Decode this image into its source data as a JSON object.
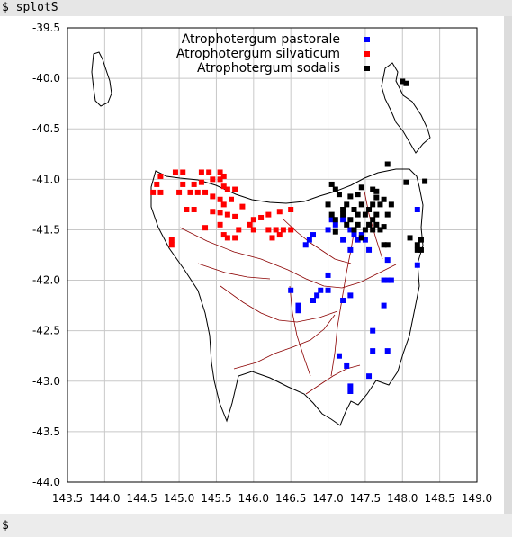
{
  "terminal": {
    "command": "$ splotS",
    "prompt": "$"
  },
  "chart_data": {
    "type": "scatter",
    "xlim": [
      143.5,
      149.0
    ],
    "ylim": [
      -44.0,
      -39.5
    ],
    "xticks": [
      "143.5",
      "144.0",
      "144.5",
      "145.0",
      "145.5",
      "146.0",
      "146.5",
      "147.0",
      "147.5",
      "148.0",
      "148.5",
      "149.0"
    ],
    "yticks": [
      "-39.5",
      "-40.0",
      "-40.5",
      "-41.0",
      "-41.5",
      "-42.0",
      "-42.5",
      "-43.0",
      "-43.5",
      "-44.0"
    ],
    "grid": true,
    "legend_position": "top-right",
    "series": [
      {
        "name": "Atrophotergum pastorale",
        "color": "#0000ff",
        "points": [
          [
            148.2,
            -41.3
          ],
          [
            147.05,
            -41.4
          ],
          [
            147.2,
            -41.4
          ],
          [
            147.1,
            -41.45
          ],
          [
            147.3,
            -41.5
          ],
          [
            147.45,
            -41.55
          ],
          [
            147.5,
            -41.6
          ],
          [
            147.4,
            -41.6
          ],
          [
            147.2,
            -41.6
          ],
          [
            147.35,
            -41.55
          ],
          [
            147.0,
            -41.5
          ],
          [
            146.8,
            -41.55
          ],
          [
            146.75,
            -41.6
          ],
          [
            146.7,
            -41.65
          ],
          [
            147.3,
            -41.7
          ],
          [
            147.55,
            -41.7
          ],
          [
            147.8,
            -41.8
          ],
          [
            148.2,
            -41.85
          ],
          [
            147.0,
            -41.95
          ],
          [
            147.75,
            -42.0
          ],
          [
            147.8,
            -42.0
          ],
          [
            147.85,
            -42.0
          ],
          [
            146.5,
            -42.1
          ],
          [
            147.0,
            -42.1
          ],
          [
            146.9,
            -42.1
          ],
          [
            146.85,
            -42.15
          ],
          [
            147.3,
            -42.15
          ],
          [
            146.8,
            -42.2
          ],
          [
            147.2,
            -42.2
          ],
          [
            146.6,
            -42.3
          ],
          [
            146.6,
            -42.25
          ],
          [
            147.75,
            -42.25
          ],
          [
            147.6,
            -42.5
          ],
          [
            147.15,
            -42.75
          ],
          [
            147.6,
            -42.7
          ],
          [
            147.8,
            -42.7
          ],
          [
            147.25,
            -42.85
          ],
          [
            147.55,
            -42.95
          ],
          [
            147.3,
            -43.05
          ],
          [
            147.3,
            -43.1
          ]
        ]
      },
      {
        "name": "Atrophotergum silvaticum",
        "color": "#ff0000",
        "points": [
          [
            144.75,
            -40.97
          ],
          [
            144.95,
            -40.93
          ],
          [
            145.05,
            -40.93
          ],
          [
            145.3,
            -40.93
          ],
          [
            145.4,
            -40.93
          ],
          [
            145.55,
            -40.93
          ],
          [
            145.6,
            -40.97
          ],
          [
            145.45,
            -41.0
          ],
          [
            145.55,
            -41.0
          ],
          [
            145.3,
            -41.03
          ],
          [
            145.2,
            -41.05
          ],
          [
            145.05,
            -41.05
          ],
          [
            144.7,
            -41.05
          ],
          [
            145.6,
            -41.07
          ],
          [
            145.65,
            -41.1
          ],
          [
            145.75,
            -41.1
          ],
          [
            144.65,
            -41.13
          ],
          [
            144.75,
            -41.13
          ],
          [
            145.0,
            -41.13
          ],
          [
            145.15,
            -41.13
          ],
          [
            145.25,
            -41.13
          ],
          [
            145.35,
            -41.13
          ],
          [
            145.45,
            -41.17
          ],
          [
            145.55,
            -41.2
          ],
          [
            145.7,
            -41.2
          ],
          [
            145.6,
            -41.25
          ],
          [
            145.85,
            -41.27
          ],
          [
            145.1,
            -41.3
          ],
          [
            145.2,
            -41.3
          ],
          [
            145.45,
            -41.32
          ],
          [
            145.55,
            -41.33
          ],
          [
            145.65,
            -41.35
          ],
          [
            145.75,
            -41.37
          ],
          [
            146.0,
            -41.4
          ],
          [
            146.1,
            -41.38
          ],
          [
            146.2,
            -41.35
          ],
          [
            146.35,
            -41.32
          ],
          [
            146.5,
            -41.3
          ],
          [
            145.95,
            -41.45
          ],
          [
            145.55,
            -41.45
          ],
          [
            145.35,
            -41.48
          ],
          [
            145.8,
            -41.5
          ],
          [
            146.0,
            -41.5
          ],
          [
            146.2,
            -41.5
          ],
          [
            146.3,
            -41.5
          ],
          [
            146.4,
            -41.5
          ],
          [
            146.5,
            -41.5
          ],
          [
            145.6,
            -41.55
          ],
          [
            145.65,
            -41.58
          ],
          [
            145.75,
            -41.58
          ],
          [
            146.25,
            -41.58
          ],
          [
            146.35,
            -41.55
          ],
          [
            144.9,
            -41.6
          ],
          [
            144.9,
            -41.65
          ]
        ]
      },
      {
        "name": "Atrophotergum sodalis",
        "color": "#000000",
        "points": [
          [
            148.0,
            -40.03
          ],
          [
            148.05,
            -40.05
          ],
          [
            147.8,
            -40.85
          ],
          [
            148.3,
            -41.02
          ],
          [
            148.05,
            -41.03
          ],
          [
            147.05,
            -41.05
          ],
          [
            147.45,
            -41.08
          ],
          [
            147.6,
            -41.1
          ],
          [
            147.65,
            -41.12
          ],
          [
            147.1,
            -41.1
          ],
          [
            147.4,
            -41.15
          ],
          [
            147.15,
            -41.15
          ],
          [
            147.3,
            -41.17
          ],
          [
            147.65,
            -41.18
          ],
          [
            147.75,
            -41.2
          ],
          [
            147.0,
            -41.25
          ],
          [
            147.25,
            -41.25
          ],
          [
            147.45,
            -41.25
          ],
          [
            147.6,
            -41.25
          ],
          [
            147.7,
            -41.25
          ],
          [
            147.85,
            -41.25
          ],
          [
            147.2,
            -41.3
          ],
          [
            147.35,
            -41.3
          ],
          [
            147.55,
            -41.3
          ],
          [
            147.05,
            -41.35
          ],
          [
            147.2,
            -41.35
          ],
          [
            147.4,
            -41.35
          ],
          [
            147.5,
            -41.35
          ],
          [
            147.65,
            -41.35
          ],
          [
            147.8,
            -41.35
          ],
          [
            147.1,
            -41.4
          ],
          [
            147.3,
            -41.4
          ],
          [
            147.6,
            -41.4
          ],
          [
            147.55,
            -41.45
          ],
          [
            147.25,
            -41.45
          ],
          [
            147.4,
            -41.45
          ],
          [
            147.65,
            -41.45
          ],
          [
            147.75,
            -41.47
          ],
          [
            147.35,
            -41.5
          ],
          [
            147.5,
            -41.5
          ],
          [
            147.6,
            -41.5
          ],
          [
            147.7,
            -41.5
          ],
          [
            147.1,
            -41.52
          ],
          [
            148.1,
            -41.58
          ],
          [
            147.45,
            -41.58
          ],
          [
            148.25,
            -41.6
          ],
          [
            148.2,
            -41.65
          ],
          [
            147.8,
            -41.65
          ],
          [
            147.75,
            -41.65
          ],
          [
            148.2,
            -41.7
          ],
          [
            148.25,
            -41.7
          ]
        ]
      }
    ]
  }
}
